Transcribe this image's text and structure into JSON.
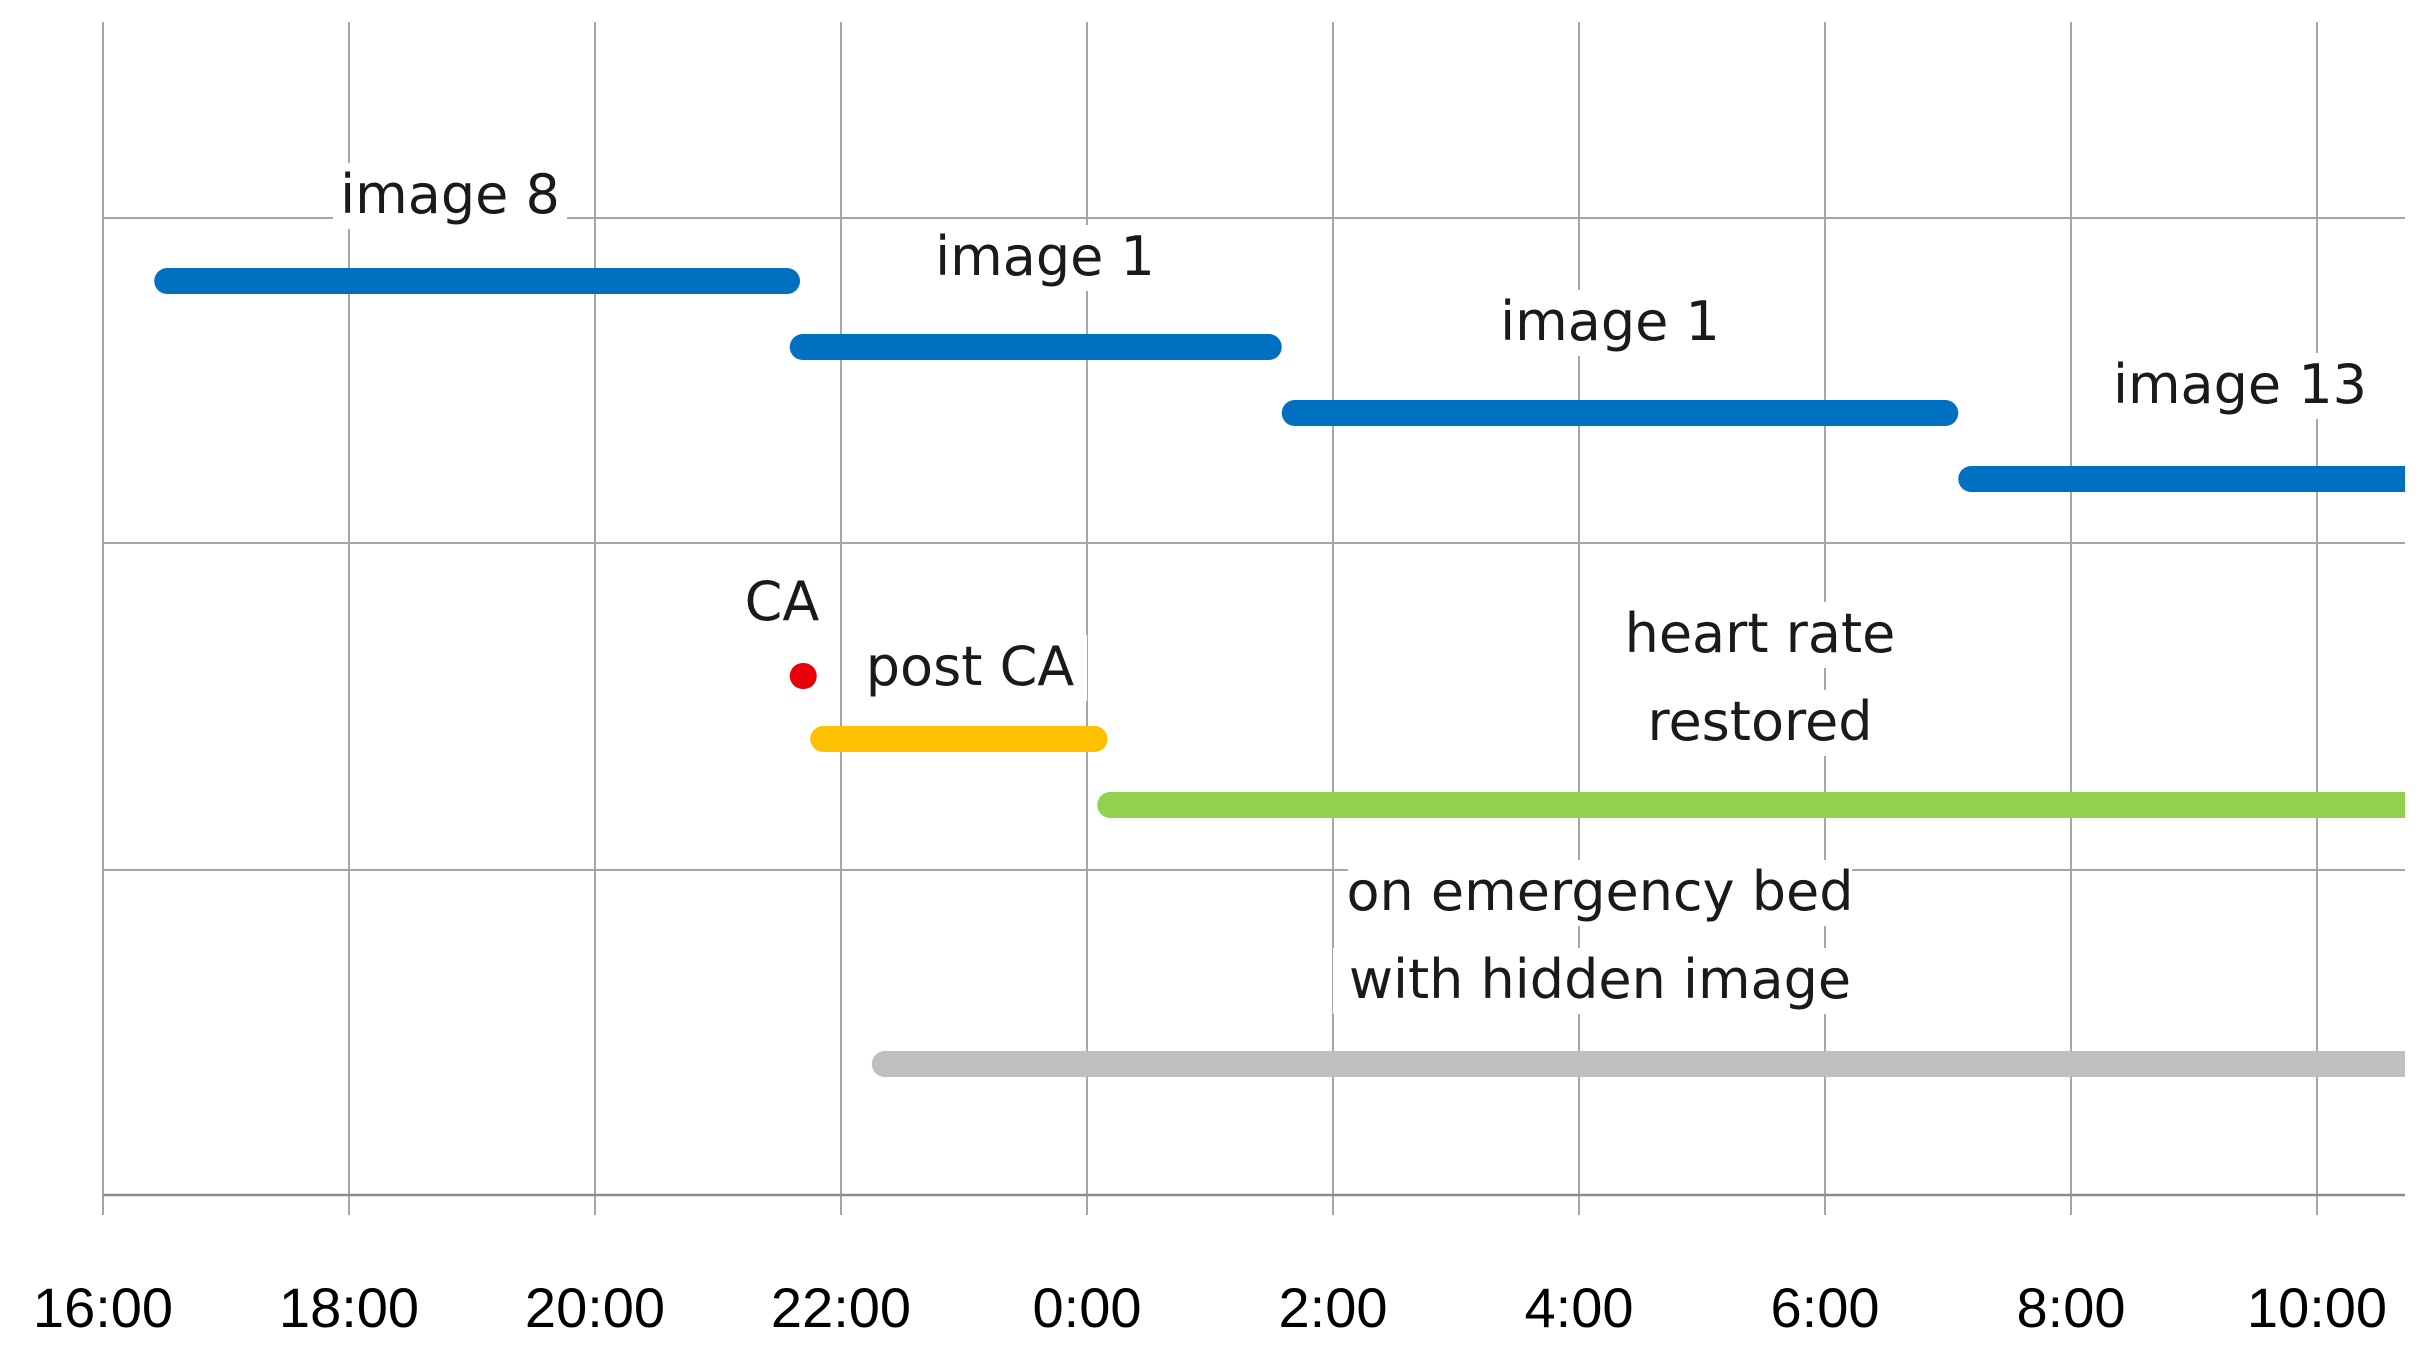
{
  "chart_data": {
    "type": "timeline",
    "title": "",
    "xlabel": "",
    "ylabel": "",
    "grid": true,
    "x_ticks": [
      "16:00",
      "18:00",
      "20:00",
      "22:00",
      "0:00",
      "2:00",
      "4:00",
      "6:00",
      "8:00",
      "10:00"
    ],
    "x_range": [
      "16:00",
      "10:50 (next day)"
    ],
    "bars": [
      {
        "label": "image 8",
        "start": "16:25",
        "end": "21:40",
        "color": "#0070c0"
      },
      {
        "label": "image 1",
        "start": "21:35",
        "end": "1:35",
        "color": "#0070c0"
      },
      {
        "label": "image 1",
        "start": "1:35",
        "end": "7:05",
        "color": "#0070c0"
      },
      {
        "label": "image 13",
        "start": "7:05",
        "end": "10:50",
        "color": "#0070c0"
      },
      {
        "label": "CA",
        "start": "21:35",
        "end": "21:45",
        "color": "#e8000b"
      },
      {
        "label": "post CA",
        "start": "21:45",
        "end": "0:10",
        "color": "#ffc000"
      },
      {
        "label": "heart rate restored",
        "label_lines": [
          "heart rate",
          "restored"
        ],
        "start": "0:05",
        "end": "10:50",
        "color": "#92d050"
      },
      {
        "label": "on emergency bed with hidden image",
        "label_lines": [
          "on emergency bed",
          "with hidden image"
        ],
        "start": "22:15",
        "end": "10:50",
        "color": "#bfbfbf"
      }
    ]
  }
}
